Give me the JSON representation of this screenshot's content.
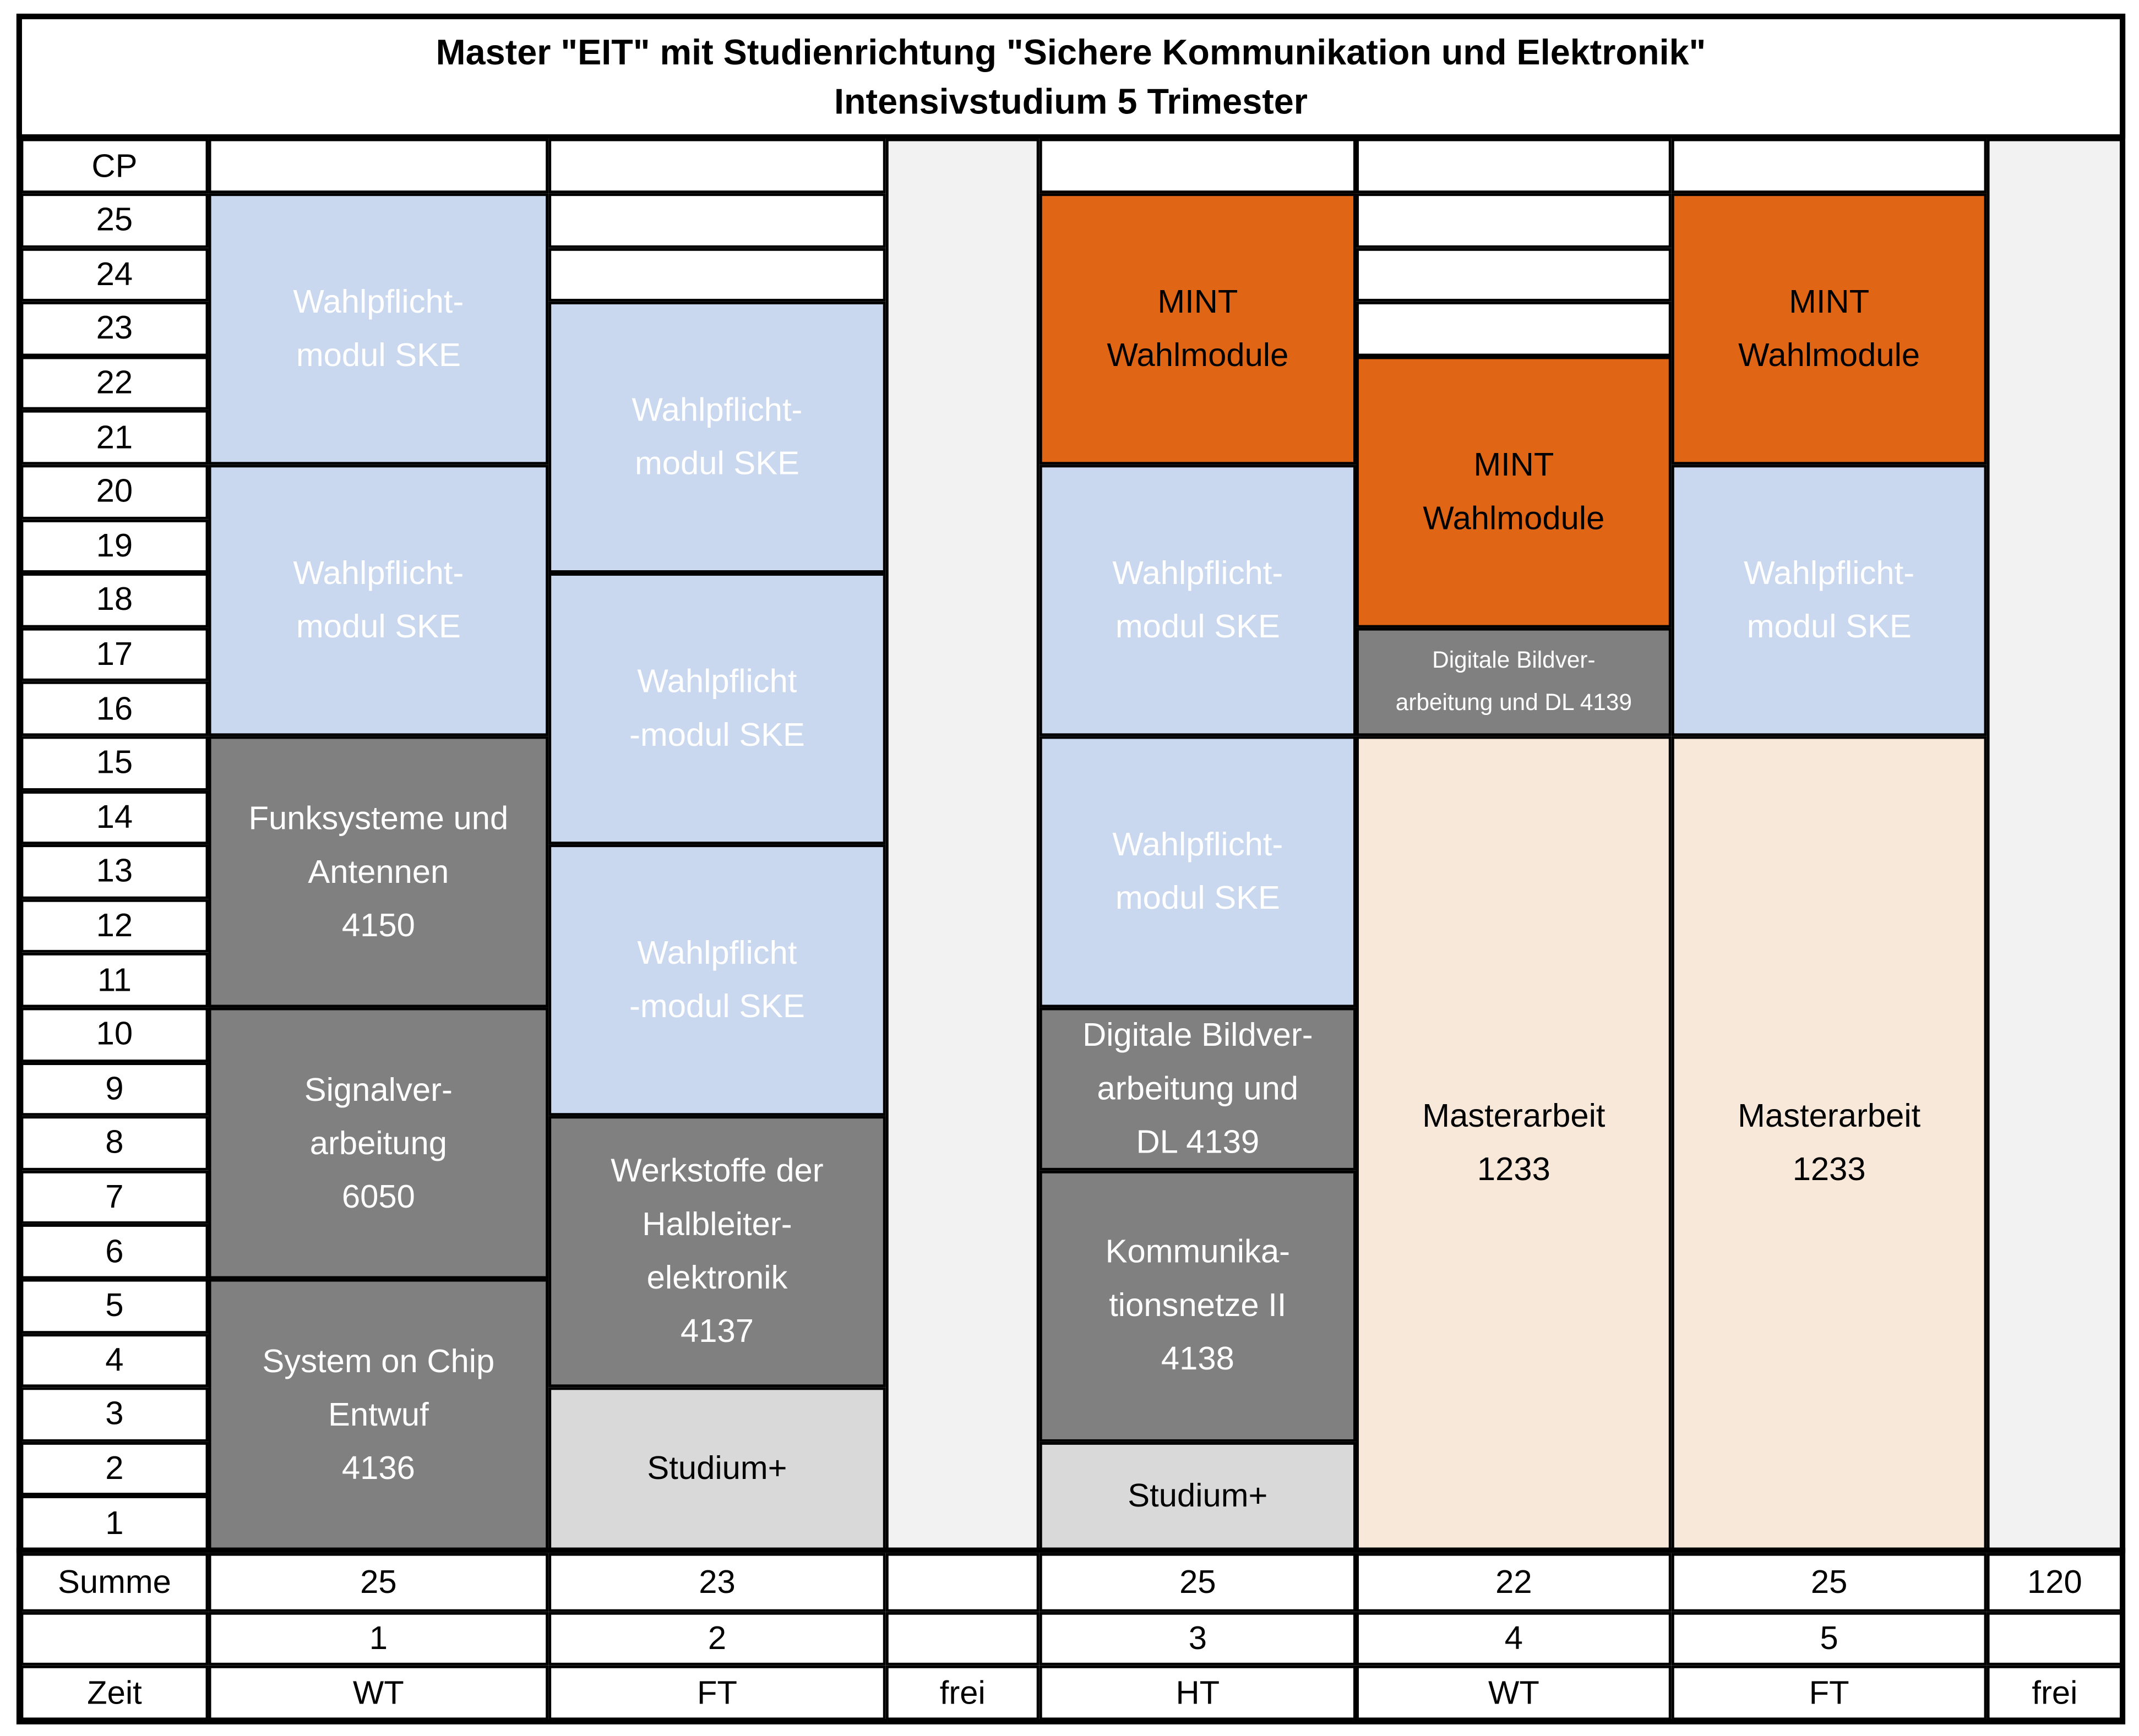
{
  "title": [
    "Master \"EIT\" mit Studienrichtung \"Sichere Kommunikation und Elektronik\"",
    "Intensivstudium 5 Trimester"
  ],
  "cp_header": "CP",
  "cp_values": [
    "25",
    "24",
    "23",
    "22",
    "21",
    "20",
    "19",
    "18",
    "17",
    "16",
    "15",
    "14",
    "13",
    "12",
    "11",
    "10",
    "9",
    "8",
    "7",
    "6",
    "5",
    "4",
    "3",
    "2",
    "1"
  ],
  "colors": {
    "elective_blue": "#c9d8ef",
    "core_gray": "#808080",
    "mint_orange": "#e06616",
    "studium_gray": "#d9d9d9",
    "thesis_peach": "#f8e8da",
    "free_gray": "#f2f2f2"
  },
  "blocks": [
    {
      "col": 1,
      "from": 25,
      "to": 21,
      "type": "blue",
      "lines": [
        "Wahlpflicht-",
        "modul SKE"
      ]
    },
    {
      "col": 1,
      "from": 20,
      "to": 16,
      "type": "blue",
      "lines": [
        "Wahlpflicht-",
        "modul SKE"
      ]
    },
    {
      "col": 1,
      "from": 15,
      "to": 11,
      "type": "gray",
      "lines": [
        "Funksysteme und",
        "Antennen",
        "4150"
      ]
    },
    {
      "col": 1,
      "from": 10,
      "to": 6,
      "type": "gray",
      "lines": [
        "Signalver-",
        "arbeitung",
        "6050"
      ]
    },
    {
      "col": 1,
      "from": 5,
      "to": 1,
      "type": "gray",
      "lines": [
        "System on Chip",
        "Entwuf",
        "4136"
      ]
    },
    {
      "col": 2,
      "from": 25,
      "to": 25,
      "type": "white",
      "lines": []
    },
    {
      "col": 2,
      "from": 24,
      "to": 24,
      "type": "white",
      "lines": []
    },
    {
      "col": 2,
      "from": 23,
      "to": 19,
      "type": "blue",
      "lines": [
        "Wahlpflicht-",
        "modul SKE"
      ]
    },
    {
      "col": 2,
      "from": 18,
      "to": 14,
      "type": "blue",
      "lines": [
        "Wahlpflicht",
        "-modul SKE"
      ]
    },
    {
      "col": 2,
      "from": 13,
      "to": 9,
      "type": "blue",
      "lines": [
        "Wahlpflicht",
        "-modul SKE"
      ]
    },
    {
      "col": 2,
      "from": 8,
      "to": 4,
      "type": "gray",
      "lines": [
        "Werkstoffe der",
        "Halbleiter-",
        "elektronik",
        "4137"
      ]
    },
    {
      "col": 2,
      "from": 3,
      "to": 1,
      "type": "light",
      "lines": [
        "Studium+"
      ]
    },
    {
      "col": 3,
      "from": 25,
      "to": 21,
      "type": "orange",
      "lines": [
        "MINT",
        "Wahlmodule"
      ]
    },
    {
      "col": 3,
      "from": 20,
      "to": 16,
      "type": "blue",
      "lines": [
        "Wahlpflicht-",
        "modul SKE"
      ]
    },
    {
      "col": 3,
      "from": 15,
      "to": 11,
      "type": "blue",
      "lines": [
        "Wahlpflicht-",
        "modul SKE"
      ]
    },
    {
      "col": 3,
      "from": 10,
      "to": 8,
      "type": "gray",
      "lines": [
        "Digitale Bildver-",
        "arbeitung und",
        "DL 4139"
      ]
    },
    {
      "col": 3,
      "from": 7,
      "to": 3,
      "type": "gray",
      "lines": [
        "Kommunika-",
        "tionsnetze II",
        "4138"
      ]
    },
    {
      "col": 3,
      "from": 2,
      "to": 1,
      "type": "light",
      "lines": [
        "Studium+"
      ]
    },
    {
      "col": 4,
      "from": 25,
      "to": 25,
      "type": "white",
      "lines": []
    },
    {
      "col": 4,
      "from": 24,
      "to": 24,
      "type": "white",
      "lines": []
    },
    {
      "col": 4,
      "from": 23,
      "to": 23,
      "type": "white",
      "lines": []
    },
    {
      "col": 4,
      "from": 22,
      "to": 18,
      "type": "orange",
      "lines": [
        "MINT",
        "Wahlmodule"
      ]
    },
    {
      "col": 4,
      "from": 17,
      "to": 16,
      "type": "gray",
      "small": true,
      "lines": [
        "Digitale Bildver-",
        "arbeitung und DL 4139"
      ]
    },
    {
      "col": 4,
      "from": 15,
      "to": 1,
      "type": "peach",
      "lines": [
        "Masterarbeit",
        "1233"
      ]
    },
    {
      "col": 5,
      "from": 25,
      "to": 21,
      "type": "orange",
      "lines": [
        "MINT",
        "Wahlmodule"
      ]
    },
    {
      "col": 5,
      "from": 20,
      "to": 16,
      "type": "blue",
      "lines": [
        "Wahlpflicht-",
        "modul SKE"
      ]
    },
    {
      "col": 5,
      "from": 15,
      "to": 1,
      "type": "peach",
      "lines": [
        "Masterarbeit",
        "1233"
      ]
    }
  ],
  "footer": {
    "summe_label": "Summe",
    "zeit_label": "Zeit",
    "sums": [
      "25",
      "23",
      "",
      "25",
      "22",
      "25",
      "120"
    ],
    "trimesters": [
      "1",
      "2",
      "",
      "3",
      "4",
      "5",
      ""
    ],
    "zeit": [
      "WT",
      "FT",
      "frei",
      "HT",
      "WT",
      "FT",
      "frei"
    ]
  }
}
